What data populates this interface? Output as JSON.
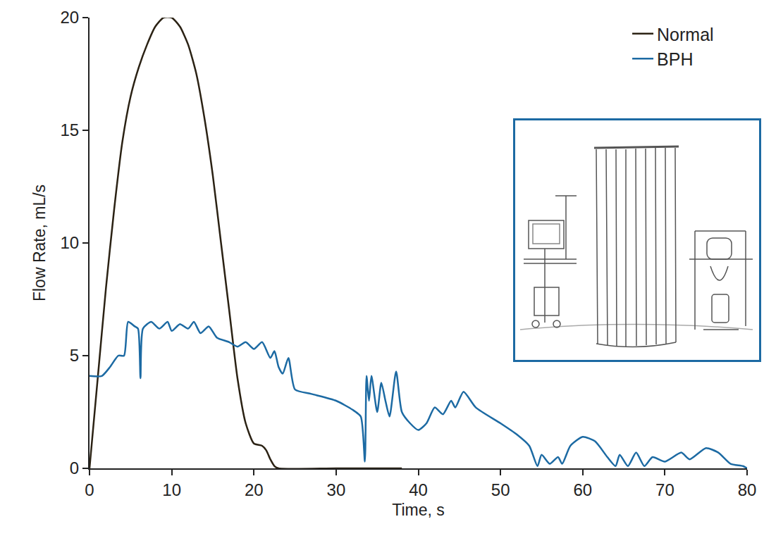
{
  "chart_data": {
    "type": "line",
    "x_label": "Time, s",
    "y_label": "Flow Rate, mL/s",
    "xlim": [
      0,
      80
    ],
    "xticks": [
      0,
      10,
      20,
      30,
      40,
      50,
      60,
      70,
      80
    ],
    "ylim": [
      0,
      20
    ],
    "yticks": [
      0,
      5,
      10,
      15,
      20
    ],
    "grid": false,
    "legend": "top right",
    "series": [
      {
        "name": "Normal",
        "color": "#2b2214",
        "x": [
          0,
          1,
          2,
          3,
          4,
          5,
          6,
          7,
          8,
          9,
          10,
          11,
          12,
          13,
          14,
          15,
          16,
          17,
          18,
          19,
          20,
          21,
          21.5,
          22,
          22.5,
          23,
          30,
          38
        ],
        "values": [
          0,
          4,
          8,
          11.5,
          14.5,
          16.5,
          17.8,
          18.8,
          19.6,
          20,
          20,
          19.6,
          18.8,
          17.5,
          15.5,
          13,
          10,
          7,
          4,
          2,
          1.1,
          1,
          0.8,
          0.4,
          0.1,
          0,
          0,
          0
        ]
      },
      {
        "name": "BPH",
        "color": "#1c6aa3",
        "x": [
          0,
          1.5,
          2.5,
          3.5,
          4.2,
          4.7,
          5.5,
          5.9,
          6.2,
          6.5,
          7.5,
          8.5,
          9.5,
          10,
          11,
          12,
          12.7,
          13.5,
          14.5,
          15.5,
          17,
          18,
          19,
          20,
          21,
          22,
          22.5,
          23,
          23.5,
          24.2,
          25,
          27,
          30,
          32,
          33,
          33.5,
          33.7,
          34,
          34.3,
          35,
          35.5,
          36,
          36.5,
          37.3,
          38,
          39,
          40,
          41,
          42,
          43,
          44,
          44.5,
          45.5,
          47,
          50,
          52,
          53.5,
          54.5,
          55,
          56,
          57,
          57.5,
          58.5,
          60,
          61.5,
          63,
          64,
          64.5,
          65.5,
          66.5,
          67.5,
          68.5,
          70,
          72,
          73,
          75,
          76.5,
          78,
          79.5,
          80
        ],
        "values": [
          4.1,
          4.1,
          4.5,
          5,
          5,
          6.5,
          6.3,
          6.2,
          4,
          6.2,
          6.5,
          6.2,
          6.5,
          6.1,
          6.4,
          6.2,
          6.5,
          6,
          6.3,
          5.8,
          5.6,
          5.4,
          5.6,
          5.3,
          5.6,
          4.9,
          5.2,
          4.5,
          4.2,
          4.9,
          3.5,
          3.3,
          3,
          2.6,
          2.3,
          0.3,
          4.1,
          3,
          4.1,
          2.5,
          3.8,
          3,
          2.3,
          4.3,
          2.5,
          2,
          1.7,
          2,
          2.7,
          2.4,
          3,
          2.7,
          3.4,
          2.7,
          2,
          1.5,
          1,
          0.1,
          0.6,
          0.2,
          0.5,
          0.2,
          1,
          1.4,
          1.2,
          0.5,
          0.1,
          0.6,
          0.1,
          0.7,
          0.1,
          0.5,
          0.3,
          0.7,
          0.4,
          0.9,
          0.7,
          0.2,
          0.1,
          0
        ]
      }
    ]
  }
}
